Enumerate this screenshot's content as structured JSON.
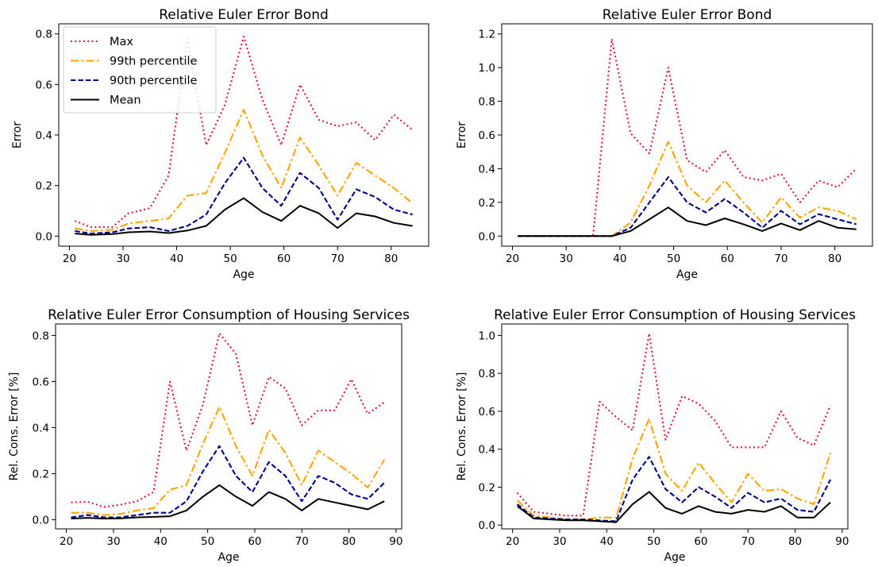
{
  "chart_data": [
    {
      "type": "line",
      "title": "Relative Euler Error Bond",
      "xlabel": "Age",
      "ylabel": "Error",
      "xlim": [
        18,
        87
      ],
      "ylim": [
        -0.04,
        0.84
      ],
      "xticks": [
        20,
        30,
        40,
        50,
        60,
        70,
        80
      ],
      "yticks": [
        0.0,
        0.2,
        0.4,
        0.6,
        0.8
      ],
      "ytick_decimals": 1,
      "legend": "top-left",
      "series": [
        {
          "name": "Max",
          "color": "#e0143c",
          "style": "dotted",
          "x": [
            21,
            24,
            28,
            31,
            35,
            38.5,
            42,
            45.5,
            49,
            52.5,
            56,
            59.5,
            63,
            66.5,
            70,
            73.5,
            77,
            80.5,
            84
          ],
          "y": [
            0.06,
            0.035,
            0.035,
            0.09,
            0.11,
            0.24,
            0.78,
            0.36,
            0.52,
            0.79,
            0.54,
            0.36,
            0.6,
            0.46,
            0.435,
            0.45,
            0.38,
            0.48,
            0.42
          ]
        },
        {
          "name": "99th percentile",
          "color": "#ffa500",
          "style": "dashdot",
          "x": [
            21,
            24,
            28,
            31,
            35,
            38.5,
            42,
            45.5,
            49,
            52.5,
            56,
            59.5,
            63,
            66.5,
            70,
            73.5,
            77,
            80.5,
            84
          ],
          "y": [
            0.03,
            0.02,
            0.025,
            0.05,
            0.06,
            0.07,
            0.16,
            0.17,
            0.33,
            0.5,
            0.32,
            0.19,
            0.39,
            0.28,
            0.16,
            0.29,
            0.24,
            0.19,
            0.13
          ]
        },
        {
          "name": "90th percentile",
          "color": "#00008b",
          "style": "dashed",
          "x": [
            21,
            24,
            28,
            31,
            35,
            38.5,
            42,
            45.5,
            49,
            52.5,
            56,
            59.5,
            63,
            66.5,
            70,
            73.5,
            77,
            80.5,
            84
          ],
          "y": [
            0.02,
            0.01,
            0.015,
            0.03,
            0.035,
            0.02,
            0.04,
            0.085,
            0.21,
            0.31,
            0.19,
            0.12,
            0.25,
            0.19,
            0.065,
            0.185,
            0.155,
            0.105,
            0.085
          ]
        },
        {
          "name": "Mean",
          "color": "#000000",
          "style": "solid",
          "x": [
            21,
            24,
            28,
            31,
            35,
            38.5,
            42,
            45.5,
            49,
            52.5,
            56,
            59.5,
            63,
            66.5,
            70,
            73.5,
            77,
            80.5,
            84
          ],
          "y": [
            0.01,
            0.005,
            0.008,
            0.015,
            0.018,
            0.012,
            0.022,
            0.04,
            0.105,
            0.15,
            0.095,
            0.06,
            0.12,
            0.09,
            0.032,
            0.09,
            0.078,
            0.052,
            0.04
          ]
        }
      ]
    },
    {
      "type": "line",
      "title": "Relative Euler Error Bond",
      "xlabel": "Age",
      "ylabel": "Error",
      "xlim": [
        18,
        87
      ],
      "ylim": [
        -0.06,
        1.26
      ],
      "xticks": [
        20,
        30,
        40,
        50,
        60,
        70,
        80
      ],
      "yticks": [
        0.0,
        0.2,
        0.4,
        0.6,
        0.8,
        1.0,
        1.2
      ],
      "ytick_decimals": 1,
      "legend": "none",
      "series": [
        {
          "name": "Max",
          "color": "#e0143c",
          "style": "dotted",
          "x": [
            21,
            24,
            28,
            31,
            35,
            38.5,
            42,
            45.5,
            49,
            52.5,
            56,
            59.5,
            63,
            66.5,
            70,
            73.5,
            77,
            80.5,
            84
          ],
          "y": [
            0.0,
            0.0,
            0.0,
            0.0,
            0.0,
            1.17,
            0.61,
            0.49,
            1.0,
            0.45,
            0.38,
            0.51,
            0.35,
            0.33,
            0.37,
            0.2,
            0.33,
            0.29,
            0.4
          ]
        },
        {
          "name": "99th percentile",
          "color": "#ffa500",
          "style": "dashdot",
          "x": [
            21,
            24,
            28,
            31,
            35,
            38.5,
            42,
            45.5,
            49,
            52.5,
            56,
            59.5,
            63,
            66.5,
            70,
            73.5,
            77,
            80.5,
            84
          ],
          "y": [
            0.0,
            0.0,
            0.0,
            0.0,
            0.0,
            0.0,
            0.08,
            0.3,
            0.56,
            0.3,
            0.2,
            0.33,
            0.2,
            0.08,
            0.23,
            0.11,
            0.17,
            0.15,
            0.1
          ]
        },
        {
          "name": "90th percentile",
          "color": "#00008b",
          "style": "dashed",
          "x": [
            21,
            24,
            28,
            31,
            35,
            38.5,
            42,
            45.5,
            49,
            52.5,
            56,
            59.5,
            63,
            66.5,
            70,
            73.5,
            77,
            80.5,
            84
          ],
          "y": [
            0.0,
            0.0,
            0.0,
            0.0,
            0.0,
            0.0,
            0.05,
            0.2,
            0.35,
            0.2,
            0.14,
            0.22,
            0.14,
            0.05,
            0.15,
            0.07,
            0.13,
            0.1,
            0.07
          ]
        },
        {
          "name": "Mean",
          "color": "#000000",
          "style": "solid",
          "x": [
            21,
            24,
            28,
            31,
            35,
            38.5,
            42,
            45.5,
            49,
            52.5,
            56,
            59.5,
            63,
            66.5,
            70,
            73.5,
            77,
            80.5,
            84
          ],
          "y": [
            0.0,
            0.0,
            0.0,
            0.0,
            0.0,
            0.0,
            0.03,
            0.1,
            0.17,
            0.09,
            0.065,
            0.105,
            0.07,
            0.03,
            0.075,
            0.035,
            0.09,
            0.05,
            0.04
          ]
        }
      ]
    },
    {
      "type": "line",
      "title": "Relative Euler Error Consumption of Housing Services",
      "xlabel": "Age",
      "ylabel": "Rel. Cons. Error [%]",
      "xlim": [
        17.7,
        91.2
      ],
      "ylim": [
        -0.04,
        0.85
      ],
      "xticks": [
        20,
        30,
        40,
        50,
        60,
        70,
        80,
        90
      ],
      "yticks": [
        0.0,
        0.2,
        0.4,
        0.6,
        0.8
      ],
      "ytick_decimals": 1,
      "legend": "none",
      "series": [
        {
          "name": "Max",
          "color": "#e0143c",
          "style": "dotted",
          "x": [
            21,
            24.5,
            28,
            31.5,
            35,
            38.5,
            42,
            45.5,
            49,
            52.5,
            56,
            59.5,
            63,
            66.5,
            70,
            73.5,
            77,
            80.5,
            84,
            87.5
          ],
          "y": [
            0.075,
            0.078,
            0.055,
            0.065,
            0.08,
            0.12,
            0.6,
            0.3,
            0.5,
            0.81,
            0.72,
            0.41,
            0.62,
            0.57,
            0.41,
            0.475,
            0.475,
            0.61,
            0.46,
            0.51
          ]
        },
        {
          "name": "99th percentile",
          "color": "#ffa500",
          "style": "dashdot",
          "x": [
            21,
            24.5,
            28,
            31.5,
            35,
            38.5,
            42,
            45.5,
            49,
            52.5,
            56,
            59.5,
            63,
            66.5,
            70,
            73.5,
            77,
            80.5,
            84,
            87.5
          ],
          "y": [
            0.03,
            0.03,
            0.02,
            0.025,
            0.04,
            0.05,
            0.13,
            0.15,
            0.33,
            0.49,
            0.32,
            0.19,
            0.39,
            0.29,
            0.15,
            0.3,
            0.25,
            0.2,
            0.14,
            0.26
          ]
        },
        {
          "name": "90th percentile",
          "color": "#00008b",
          "style": "dashed",
          "x": [
            21,
            24.5,
            28,
            31.5,
            35,
            38.5,
            42,
            45.5,
            49,
            52.5,
            56,
            59.5,
            63,
            66.5,
            70,
            73.5,
            77,
            80.5,
            84,
            87.5
          ],
          "y": [
            0.01,
            0.02,
            0.01,
            0.01,
            0.02,
            0.03,
            0.03,
            0.08,
            0.21,
            0.32,
            0.19,
            0.12,
            0.25,
            0.19,
            0.08,
            0.19,
            0.16,
            0.11,
            0.09,
            0.16
          ]
        },
        {
          "name": "Mean",
          "color": "#000000",
          "style": "solid",
          "x": [
            21,
            24.5,
            28,
            31.5,
            35,
            38.5,
            42,
            45.5,
            49,
            52.5,
            56,
            59.5,
            63,
            66.5,
            70,
            73.5,
            77,
            80.5,
            84,
            87.5
          ],
          "y": [
            0.005,
            0.008,
            0.005,
            0.006,
            0.01,
            0.012,
            0.015,
            0.04,
            0.1,
            0.15,
            0.1,
            0.06,
            0.12,
            0.09,
            0.04,
            0.09,
            0.075,
            0.06,
            0.045,
            0.08
          ]
        }
      ]
    },
    {
      "type": "line",
      "title": "Relative Euler Error Consumption of Housing Services",
      "xlabel": "Age",
      "ylabel": "Rel. Cons. Error [%]",
      "xlim": [
        17.7,
        91.2
      ],
      "ylim": [
        -0.02,
        1.06
      ],
      "xticks": [
        20,
        30,
        40,
        50,
        60,
        70,
        80,
        90
      ],
      "yticks": [
        0.0,
        0.2,
        0.4,
        0.6,
        0.8,
        1.0
      ],
      "ytick_decimals": 1,
      "legend": "none",
      "series": [
        {
          "name": "Max",
          "color": "#e0143c",
          "style": "dotted",
          "x": [
            21,
            24.5,
            28,
            31.5,
            35,
            38.5,
            42,
            45.5,
            49,
            52.5,
            56,
            59.5,
            63,
            66.5,
            70,
            73.5,
            77,
            80.5,
            84,
            87.5
          ],
          "y": [
            0.17,
            0.07,
            0.06,
            0.05,
            0.05,
            0.65,
            0.57,
            0.5,
            1.01,
            0.45,
            0.68,
            0.64,
            0.55,
            0.41,
            0.41,
            0.41,
            0.6,
            0.46,
            0.42,
            0.63
          ]
        },
        {
          "name": "99th percentile",
          "color": "#ffa500",
          "style": "dashdot",
          "x": [
            21,
            24.5,
            28,
            31.5,
            35,
            38.5,
            42,
            45.5,
            49,
            52.5,
            56,
            59.5,
            63,
            66.5,
            70,
            73.5,
            77,
            80.5,
            84,
            87.5
          ],
          "y": [
            0.13,
            0.05,
            0.04,
            0.03,
            0.03,
            0.04,
            0.04,
            0.35,
            0.56,
            0.27,
            0.18,
            0.33,
            0.22,
            0.12,
            0.27,
            0.18,
            0.19,
            0.14,
            0.11,
            0.38
          ]
        },
        {
          "name": "90th percentile",
          "color": "#00008b",
          "style": "dashed",
          "x": [
            21,
            24.5,
            28,
            31.5,
            35,
            38.5,
            42,
            45.5,
            49,
            52.5,
            56,
            59.5,
            63,
            66.5,
            70,
            73.5,
            77,
            80.5,
            84,
            87.5
          ],
          "y": [
            0.11,
            0.04,
            0.035,
            0.03,
            0.03,
            0.025,
            0.02,
            0.24,
            0.36,
            0.19,
            0.12,
            0.2,
            0.15,
            0.09,
            0.17,
            0.12,
            0.14,
            0.08,
            0.07,
            0.24
          ]
        },
        {
          "name": "Mean",
          "color": "#000000",
          "style": "solid",
          "x": [
            21,
            24.5,
            28,
            31.5,
            35,
            38.5,
            42,
            45.5,
            49,
            52.5,
            56,
            59.5,
            63,
            66.5,
            70,
            73.5,
            77,
            80.5,
            84,
            87.5
          ],
          "y": [
            0.1,
            0.035,
            0.03,
            0.025,
            0.025,
            0.02,
            0.015,
            0.11,
            0.175,
            0.09,
            0.06,
            0.1,
            0.07,
            0.06,
            0.08,
            0.07,
            0.1,
            0.04,
            0.04,
            0.12
          ]
        }
      ]
    }
  ]
}
